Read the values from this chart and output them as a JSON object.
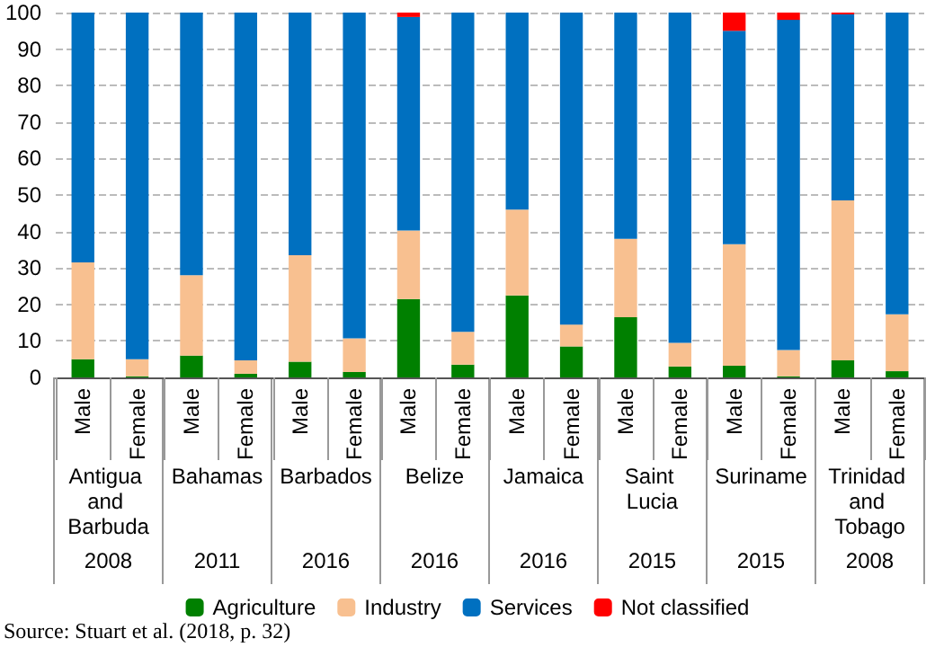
{
  "chart_data": {
    "type": "bar",
    "stacked": true,
    "categories": [
      "Male",
      "Female",
      "Male",
      "Female",
      "Male",
      "Female",
      "Male",
      "Female",
      "Male",
      "Female",
      "Male",
      "Female",
      "Male",
      "Female",
      "Male",
      "Female"
    ],
    "series": [
      {
        "name": "Agriculture",
        "color": "#008000",
        "values": [
          5,
          0.3,
          6,
          1,
          4.3,
          1.5,
          21.5,
          3.5,
          22.5,
          8.5,
          16.5,
          3,
          3.2,
          0.3,
          4.7,
          1.7
        ]
      },
      {
        "name": "Industry",
        "color": "#f8c090",
        "values": [
          26.5,
          4.7,
          22,
          3.7,
          29.2,
          9.2,
          18.8,
          9,
          23.5,
          6,
          21.5,
          6.5,
          33.3,
          7.2,
          43.8,
          15.6
        ]
      },
      {
        "name": "Services",
        "color": "#0070c0",
        "values": [
          68.5,
          95,
          72,
          95.3,
          66.5,
          89.3,
          58.5,
          87.5,
          54,
          85.5,
          62,
          90.5,
          58.5,
          90.5,
          51,
          82.7
        ]
      },
      {
        "name": "Not classified",
        "color": "#ff0000",
        "values": [
          0,
          0,
          0,
          0,
          0,
          0,
          1.2,
          0,
          0,
          0,
          0,
          0,
          5,
          2,
          0.5,
          0
        ]
      }
    ],
    "ylim": [
      0,
      100
    ],
    "yticks": [
      0,
      10,
      20,
      30,
      40,
      50,
      60,
      70,
      80,
      90,
      100
    ],
    "grid": "y",
    "legend": "bottom",
    "annotations": [
      "Antigua and Barbuda",
      "2008",
      "Bahamas",
      "2011",
      "Barbados",
      "2016",
      "Belize",
      "2016",
      "Jamaica",
      "2016",
      "Saint Lucia",
      "2015",
      "Suriname",
      "2015",
      "Trinidad and Tobago",
      "2008",
      "Source: Stuart et al. (2018, p. 32)"
    ]
  }
}
